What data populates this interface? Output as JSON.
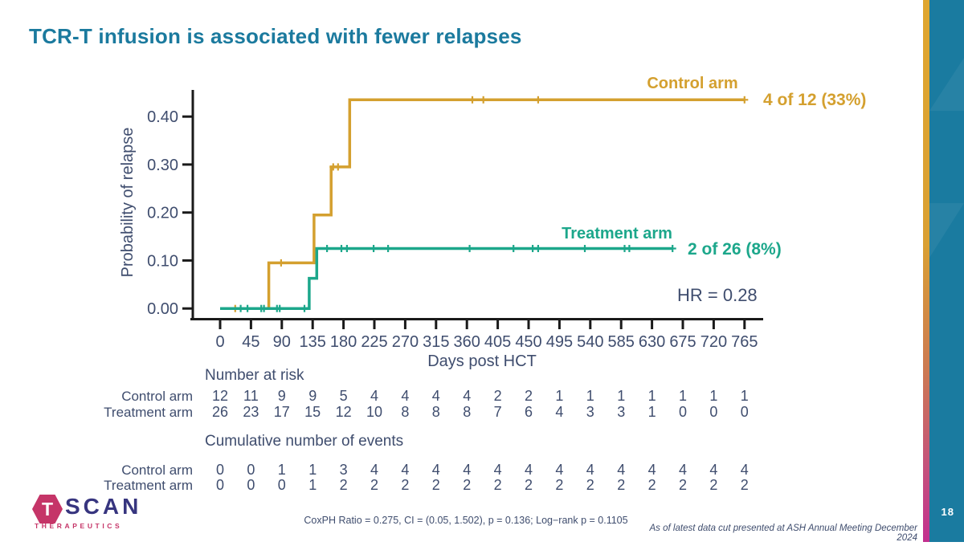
{
  "slide": {
    "title": "TCR-T infusion is associated with fewer relapses",
    "page_number": "18"
  },
  "colors": {
    "title": "#1B7A9E",
    "text": "#3F4D6E",
    "control": "#D4A02F",
    "treatment": "#1CA78B",
    "side_panel": "#1A7BA0",
    "logo_pink": "#C53568",
    "logo_navy": "#37357F"
  },
  "chart_data": {
    "type": "line",
    "subtype": "kaplan-meier-step",
    "xlabel": "Days post HCT",
    "ylabel": "Probability of relapse",
    "x_ticks": [
      0,
      45,
      90,
      135,
      180,
      225,
      270,
      315,
      360,
      405,
      450,
      495,
      540,
      585,
      630,
      675,
      720,
      765
    ],
    "y_ticks": [
      "0.00",
      "0.10",
      "0.20",
      "0.30",
      "0.40"
    ],
    "y_tick_values": [
      0,
      0.1,
      0.2,
      0.3,
      0.4
    ],
    "xlim": [
      0,
      765
    ],
    "ylim": [
      0,
      0.46
    ],
    "grid": false,
    "annotation": "HR = 0.28",
    "series": [
      {
        "name": "Control arm",
        "color": "#D4A02F",
        "result_label": "4 of 12 (33%)",
        "steps": [
          [
            0,
            0
          ],
          [
            71,
            0.095
          ],
          [
            137,
            0.195
          ],
          [
            162,
            0.295
          ],
          [
            189,
            0.435
          ],
          [
            765,
            0.435
          ]
        ],
        "censors": [
          [
            22,
            0
          ],
          [
            89,
            0.095
          ],
          [
            165,
            0.295
          ],
          [
            172,
            0.295
          ],
          [
            368,
            0.435
          ],
          [
            384,
            0.435
          ],
          [
            464,
            0.435
          ],
          [
            765,
            0.435
          ]
        ]
      },
      {
        "name": "Treatment arm",
        "color": "#1CA78B",
        "result_label": "2 of 26 (8%)",
        "steps": [
          [
            0,
            0
          ],
          [
            130,
            0.063
          ],
          [
            141,
            0.125
          ],
          [
            660,
            0.125
          ]
        ],
        "censors": [
          [
            30,
            0
          ],
          [
            40,
            0
          ],
          [
            60,
            0
          ],
          [
            64,
            0
          ],
          [
            83,
            0
          ],
          [
            87,
            0
          ],
          [
            123,
            0
          ],
          [
            156,
            0.125
          ],
          [
            177,
            0.125
          ],
          [
            185,
            0.125
          ],
          [
            224,
            0.125
          ],
          [
            245,
            0.125
          ],
          [
            364,
            0.125
          ],
          [
            428,
            0.125
          ],
          [
            456,
            0.125
          ],
          [
            464,
            0.125
          ],
          [
            532,
            0.125
          ],
          [
            590,
            0.125
          ],
          [
            597,
            0.125
          ],
          [
            660,
            0.125
          ]
        ]
      }
    ],
    "risk_table": {
      "heading": "Number at risk",
      "rows": [
        {
          "label": "Control arm",
          "values": [
            12,
            11,
            9,
            9,
            5,
            4,
            4,
            4,
            4,
            2,
            2,
            1,
            1,
            1,
            1,
            1,
            1,
            1
          ]
        },
        {
          "label": "Treatment arm",
          "values": [
            26,
            23,
            17,
            15,
            12,
            10,
            8,
            8,
            8,
            7,
            6,
            4,
            3,
            3,
            1,
            0,
            0,
            0
          ]
        }
      ]
    },
    "events_table": {
      "heading": "Cumulative number of events",
      "rows": [
        {
          "label": "Control arm",
          "values": [
            0,
            0,
            1,
            1,
            3,
            4,
            4,
            4,
            4,
            4,
            4,
            4,
            4,
            4,
            4,
            4,
            4,
            4
          ]
        },
        {
          "label": "Treatment arm",
          "values": [
            0,
            0,
            0,
            1,
            2,
            2,
            2,
            2,
            2,
            2,
            2,
            2,
            2,
            2,
            2,
            2,
            2,
            2
          ]
        }
      ]
    }
  },
  "footer": {
    "stats_note": "CoxPH Ratio = 0.275, CI = (0.05, 1.502), p = 0.136; Log−rank p = 0.1105",
    "source_note": "As of latest data cut presented at ASH Annual Meeting December 2024",
    "logo": {
      "t": "T",
      "scan": "SCAN",
      "therapeutics": "THERAPEUTICS"
    }
  }
}
